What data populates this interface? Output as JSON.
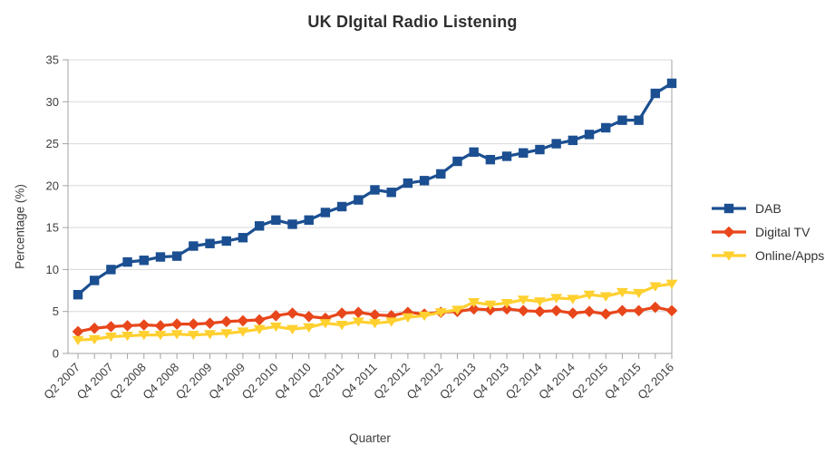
{
  "chart_data": {
    "type": "line",
    "title": "UK DIgital Radio Listening",
    "xlabel": "Quarter",
    "ylabel": "Percentage (%)",
    "ylim": [
      0,
      35
    ],
    "ytick_step": 5,
    "grid": true,
    "legend_position": "right",
    "x_tick_label_every": 2,
    "categories": [
      "Q2 2007",
      "Q3 2007",
      "Q4 2007",
      "Q1 2008",
      "Q2 2008",
      "Q3 2008",
      "Q4 2008",
      "Q1 2009",
      "Q2 2009",
      "Q3 2009",
      "Q4 2009",
      "Q1 2010",
      "Q2 2010",
      "Q3 2010",
      "Q4 2010",
      "Q1 2011",
      "Q2 2011",
      "Q3 2011",
      "Q4 2011",
      "Q1 2012",
      "Q2 2012",
      "Q3 2012",
      "Q4 2012",
      "Q1 2013",
      "Q2 2013",
      "Q3 2013",
      "Q4 2013",
      "Q1 2014",
      "Q2 2014",
      "Q3 2014",
      "Q4 2014",
      "Q1 2015",
      "Q2 2015",
      "Q3 2015",
      "Q4 2015",
      "Q1 2016",
      "Q2 2016"
    ],
    "series": [
      {
        "name": "DAB",
        "marker": "square",
        "color": "#1B4F91",
        "values": [
          7,
          8.7,
          10,
          10.9,
          11.1,
          11.5,
          11.6,
          12.8,
          13.1,
          13.4,
          13.8,
          15.2,
          15.9,
          15.4,
          15.9,
          16.8,
          17.5,
          18.3,
          19.5,
          19.2,
          20.3,
          20.6,
          21.4,
          22.9,
          24,
          23.1,
          23.5,
          23.9,
          24.3,
          25,
          25.4,
          26.1,
          26.9,
          27.8,
          27.8,
          31,
          32.2
        ]
      },
      {
        "name": "Digital TV",
        "marker": "diamond",
        "color": "#E8461B",
        "values": [
          2.6,
          3,
          3.2,
          3.3,
          3.4,
          3.3,
          3.5,
          3.5,
          3.6,
          3.8,
          3.9,
          4,
          4.5,
          4.8,
          4.4,
          4.2,
          4.8,
          4.9,
          4.6,
          4.5,
          4.9,
          4.7,
          4.9,
          5,
          5.3,
          5.2,
          5.3,
          5.1,
          5,
          5.1,
          4.8,
          5,
          4.7,
          5.1,
          5.1,
          5.5,
          5.1
        ]
      },
      {
        "name": "Online/Apps",
        "marker": "triangle-down",
        "color": "#FFD02F",
        "values": [
          1.6,
          1.7,
          2,
          2.1,
          2.2,
          2.2,
          2.3,
          2.2,
          2.3,
          2.4,
          2.6,
          2.9,
          3.2,
          2.9,
          3.1,
          3.6,
          3.4,
          3.8,
          3.6,
          3.8,
          4.3,
          4.5,
          4.9,
          5.2,
          6.1,
          5.8,
          6,
          6.4,
          6.2,
          6.6,
          6.5,
          7,
          6.8,
          7.3,
          7.2,
          8,
          8.3
        ]
      }
    ],
    "colors": {
      "gridline": "#D8D8D8",
      "axis": "#A3A3A3",
      "tick_label": "#3E3E3E",
      "title_text": "#2F2F2F"
    }
  }
}
